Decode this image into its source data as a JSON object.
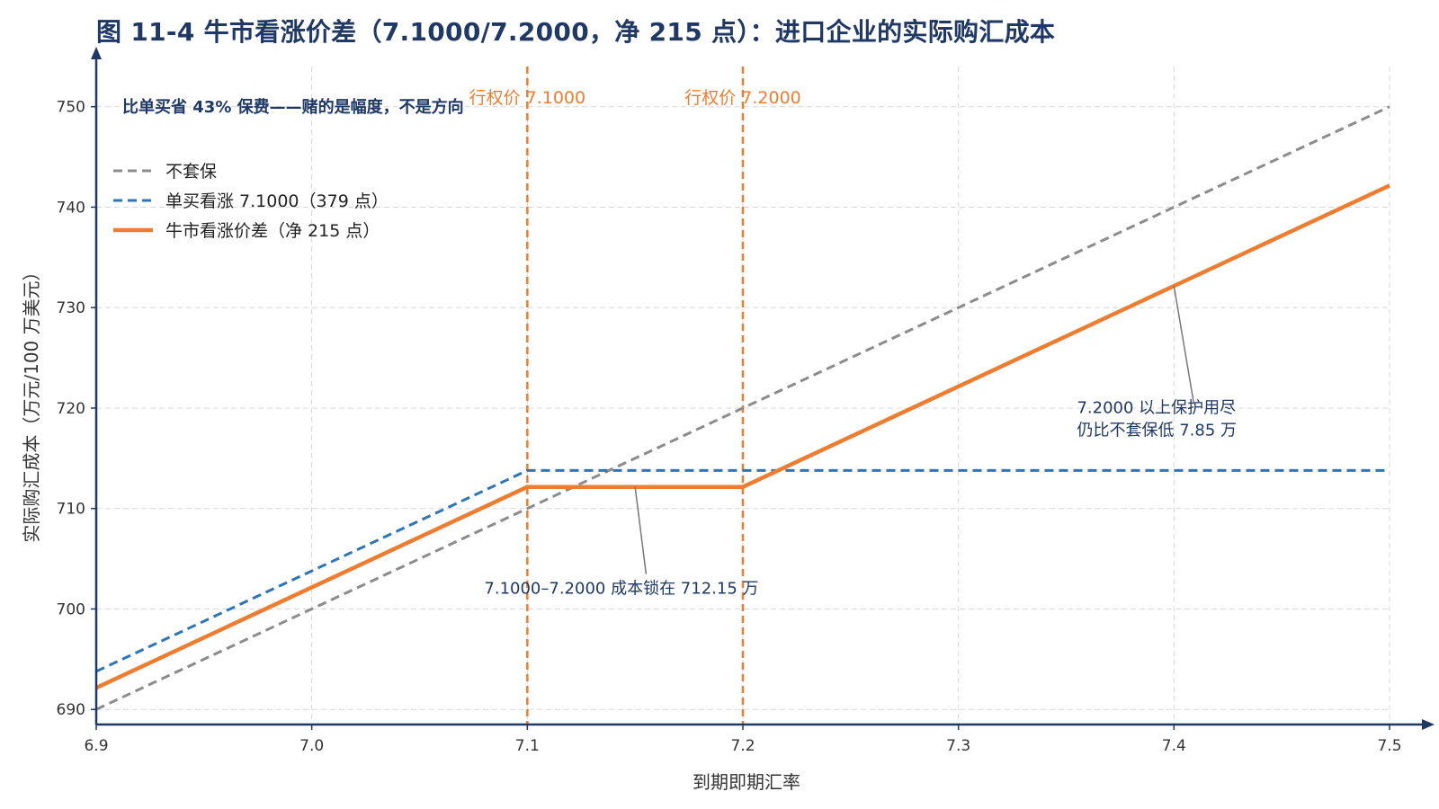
{
  "title": "图 11-4 牛市看涨价差（7.1000/7.2000，净 215 点）：进口企业的实际购汇成本",
  "colors": {
    "gray": "#8c8c8c",
    "blue": "#2e75b6",
    "orange": "#ED7D31",
    "axis": "#1f3864",
    "grid": "#d9d9d9"
  },
  "chart_data": {
    "type": "line",
    "title": "图 11-4 牛市看涨价差（7.1000/7.2000，净 215 点）：进口企业的实际购汇成本",
    "subtitle": "比单买省 43% 保费——赌的是幅度，不是方向",
    "xlabel": "到期即期汇率",
    "ylabel": "实际购汇成本（万元/100 万美元）",
    "xlim": [
      6.9,
      7.5
    ],
    "ylim": [
      688.5,
      754
    ],
    "xticks": [
      6.9,
      7.0,
      7.1,
      7.2,
      7.3,
      7.4,
      7.5
    ],
    "xtick_labels": [
      "6.9",
      "7.0",
      "7.1",
      "7.2",
      "7.3",
      "7.4",
      "7.5"
    ],
    "yticks": [
      690,
      700,
      710,
      720,
      730,
      740,
      750
    ],
    "ytick_labels": [
      "690",
      "700",
      "710",
      "720",
      "730",
      "740",
      "750"
    ],
    "grid": true,
    "legend_position": "top-left",
    "series": [
      {
        "name": "不套保",
        "style": "dashed",
        "color": "#8c8c8c",
        "x": [
          6.9,
          7.5
        ],
        "y": [
          690,
          750
        ]
      },
      {
        "name": "单买看涨 7.1000（379 点）",
        "style": "dashed",
        "color": "#2e75b6",
        "x": [
          6.9,
          7.1,
          7.5
        ],
        "y": [
          693.79,
          713.79,
          713.79
        ]
      },
      {
        "name": "牛市看涨价差（净 215 点）",
        "style": "solid",
        "color": "#ED7D31",
        "x": [
          6.9,
          7.1,
          7.2,
          7.5
        ],
        "y": [
          692.15,
          712.15,
          712.15,
          742.15
        ]
      }
    ],
    "vlines": [
      {
        "x": 7.1,
        "label": "行权价 7.1000",
        "color": "#ED7D31"
      },
      {
        "x": 7.2,
        "label": "行权价 7.2000",
        "color": "#ED7D31"
      }
    ],
    "annotations": [
      {
        "lines": [
          "7.1000–7.2000 成本锁在 712.15 万"
        ],
        "point": [
          7.15,
          712.15
        ],
        "text_at": [
          7.08,
          701.5
        ]
      },
      {
        "lines": [
          "7.2000 以上保护用尽",
          "仍比不套保低 7.85 万"
        ],
        "point": [
          7.4,
          732.15
        ],
        "text_at": [
          7.355,
          719.5
        ]
      }
    ]
  }
}
